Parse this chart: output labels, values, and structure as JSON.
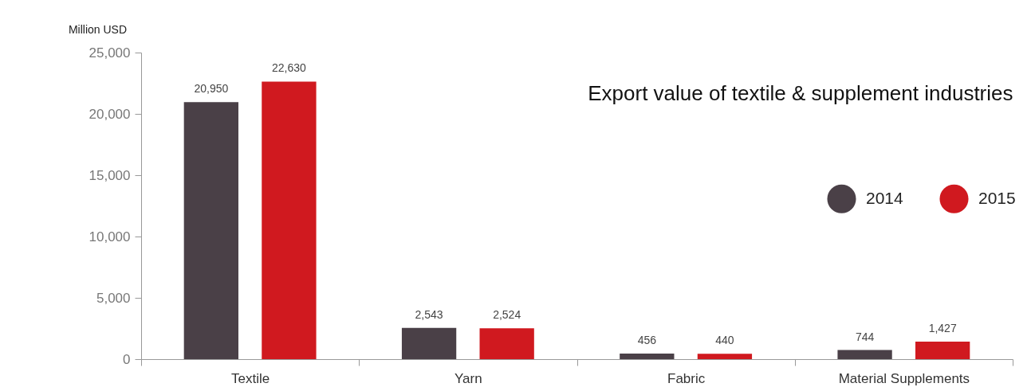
{
  "chart_data": {
    "type": "bar",
    "title": "Export value of textile & supplement industries",
    "ylabel": "Million USD",
    "categories": [
      "Textile",
      "Yarn",
      "Fabric",
      "Material Supplements"
    ],
    "series": [
      {
        "name": "2014",
        "color": "#4a4047",
        "values": [
          20950,
          2543,
          456,
          744
        ],
        "value_labels": [
          "20,950",
          "2,543",
          "456",
          "744"
        ]
      },
      {
        "name": "2015",
        "color": "#d0191f",
        "values": [
          22630,
          2524,
          440,
          1427
        ],
        "value_labels": [
          "22,630",
          "2,524",
          "440",
          "1,427"
        ]
      }
    ],
    "ylim": [
      0,
      25000
    ],
    "yticks": [
      0,
      {
        "value": 5000,
        "label": "5,000"
      },
      {
        "value": 10000,
        "label": "10,000"
      },
      {
        "value": 15000,
        "label": "15,000"
      },
      {
        "value": 20000,
        "label": "20,000"
      },
      {
        "value": 25000,
        "label": "25,000"
      }
    ],
    "grid": false,
    "legend": "top right"
  }
}
